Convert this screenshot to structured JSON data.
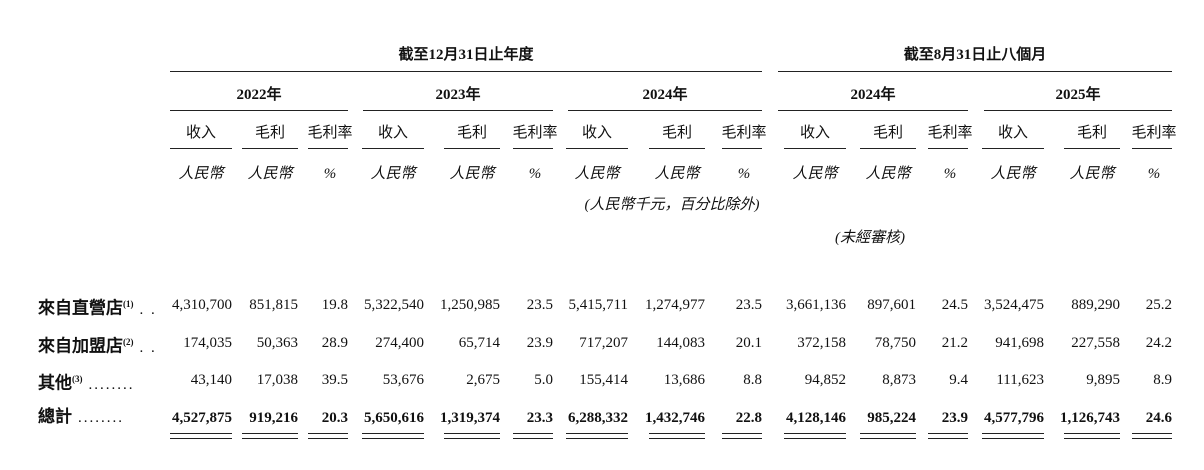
{
  "table": {
    "period_groups": [
      "截至12月31日止年度",
      "截至8月31日止八個月"
    ],
    "years": [
      {
        "label": "2022年",
        "columns": [
          "收入",
          "毛利",
          "毛利率"
        ],
        "units": [
          "人民幣",
          "人民幣",
          "%"
        ]
      },
      {
        "label": "2023年",
        "columns": [
          "收入",
          "毛利",
          "毛利率"
        ],
        "units": [
          "人民幣",
          "人民幣",
          "%"
        ]
      },
      {
        "label": "2024年",
        "columns": [
          "收入",
          "毛利",
          "毛利率"
        ],
        "units": [
          "人民幣",
          "人民幣",
          "%"
        ]
      },
      {
        "label": "2024年",
        "columns": [
          "收入",
          "毛利",
          "毛利率"
        ],
        "units": [
          "人民幣",
          "人民幣",
          "%"
        ]
      },
      {
        "label": "2025年",
        "columns": [
          "收入",
          "毛利",
          "毛利率"
        ],
        "units": [
          "人民幣",
          "人民幣",
          "%"
        ]
      }
    ],
    "note_currency": "(人民幣千元，百分比除外)",
    "note_unaudited": "(未經審核)",
    "rows": [
      {
        "label": "來自直營店",
        "note": "(1)",
        "leader": ". .",
        "values": [
          "4,310,700",
          "851,815",
          "19.8",
          "5,322,540",
          "1,250,985",
          "23.5",
          "5,415,711",
          "1,274,977",
          "23.5",
          "3,661,136",
          "897,601",
          "24.5",
          "3,524,475",
          "889,290",
          "25.2"
        ]
      },
      {
        "label": "來自加盟店",
        "note": "(2)",
        "leader": ". .",
        "values": [
          "174,035",
          "50,363",
          "28.9",
          "274,400",
          "65,714",
          "23.9",
          "717,207",
          "144,083",
          "20.1",
          "372,158",
          "78,750",
          "21.2",
          "941,698",
          "227,558",
          "24.2"
        ]
      },
      {
        "label": "其他",
        "note": "(3)",
        "leader": "........",
        "values": [
          "43,140",
          "17,038",
          "39.5",
          "53,676",
          "2,675",
          "5.0",
          "155,414",
          "13,686",
          "8.8",
          "94,852",
          "8,873",
          "9.4",
          "111,623",
          "9,895",
          "8.9"
        ]
      },
      {
        "label": "總計",
        "leader": "........",
        "values": [
          "4,527,875",
          "919,216",
          "20.3",
          "5,650,616",
          "1,319,374",
          "23.3",
          "6,288,332",
          "1,432,746",
          "22.8",
          "4,128,146",
          "985,224",
          "23.9",
          "4,577,796",
          "1,126,743",
          "24.6"
        ]
      }
    ]
  }
}
